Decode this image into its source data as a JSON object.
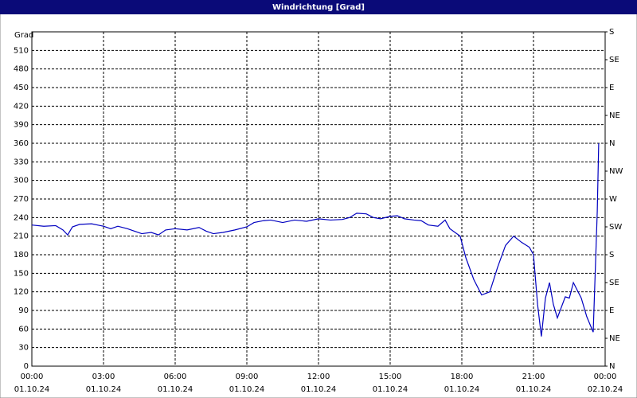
{
  "chart_data": {
    "type": "line",
    "title": "Windrichtung [Grad]",
    "y_label": "Grad",
    "x": [
      0,
      0.5,
      1.0,
      1.3,
      1.5,
      1.7,
      2.0,
      2.5,
      3.0,
      3.3,
      3.6,
      4.0,
      4.3,
      4.6,
      5.0,
      5.3,
      5.6,
      6.0,
      6.5,
      7.0,
      7.3,
      7.6,
      8.0,
      8.5,
      9.0,
      9.3,
      9.7,
      10.0,
      10.5,
      11.0,
      11.5,
      12.0,
      12.5,
      13.0,
      13.3,
      13.6,
      14.0,
      14.3,
      14.6,
      15.0,
      15.3,
      15.6,
      16.0,
      16.3,
      16.6,
      17.0,
      17.3,
      17.5,
      17.93,
      18.17,
      18.5,
      18.83,
      19.17,
      19.5,
      19.83,
      20.17,
      20.5,
      20.83,
      21.0,
      21.17,
      21.33,
      21.5,
      21.67,
      21.83,
      22.0,
      22.33,
      22.5,
      22.67,
      23.0,
      23.23,
      23.5,
      23.67,
      23.73
    ],
    "series": [
      {
        "name": "Windrichtung",
        "color": "#0000c0",
        "values": [
          228,
          226,
          227,
          220,
          212,
          225,
          229,
          230,
          226,
          222,
          226,
          222,
          218,
          214,
          216,
          212,
          220,
          222,
          220,
          224,
          218,
          214,
          216,
          220,
          225,
          232,
          235,
          236,
          232,
          236,
          234,
          238,
          236,
          237,
          240,
          247,
          246,
          240,
          238,
          242,
          243,
          238,
          236,
          235,
          228,
          226,
          236,
          222,
          210,
          175,
          140,
          115,
          120,
          160,
          195,
          210,
          200,
          192,
          180,
          100,
          48,
          110,
          135,
          100,
          78,
          112,
          110,
          135,
          110,
          80,
          55,
          250,
          360
        ]
      }
    ],
    "xlim": [
      0,
      24
    ],
    "xticks": [
      {
        "value": 0,
        "label": "00:00"
      },
      {
        "value": 3,
        "label": "03:00"
      },
      {
        "value": 6,
        "label": "06:00"
      },
      {
        "value": 9,
        "label": "09:00"
      },
      {
        "value": 12,
        "label": "12:00"
      },
      {
        "value": 15,
        "label": "15:00"
      },
      {
        "value": 18,
        "label": "18:00"
      },
      {
        "value": 21,
        "label": "21:00"
      },
      {
        "value": 24,
        "label": "00:00"
      }
    ],
    "xtick_dates": [
      "01.10.24",
      "01.10.24",
      "01.10.24",
      "01.10.24",
      "01.10.24",
      "01.10.24",
      "01.10.24",
      "01.10.24",
      "02.10.24"
    ],
    "ylim": [
      0,
      540
    ],
    "yticks": [
      0,
      30,
      60,
      90,
      120,
      150,
      180,
      210,
      240,
      270,
      300,
      330,
      360,
      390,
      420,
      450,
      480,
      510
    ],
    "y2lim": [
      0,
      540
    ],
    "y2ticks": [
      {
        "value": 0,
        "label": "N"
      },
      {
        "value": 45,
        "label": "NE"
      },
      {
        "value": 90,
        "label": "E"
      },
      {
        "value": 135,
        "label": "SE"
      },
      {
        "value": 180,
        "label": "S"
      },
      {
        "value": 225,
        "label": "SW"
      },
      {
        "value": 270,
        "label": "W"
      },
      {
        "value": 315,
        "label": "NW"
      },
      {
        "value": 360,
        "label": "N"
      },
      {
        "value": 405,
        "label": "NE"
      },
      {
        "value": 450,
        "label": "E"
      },
      {
        "value": 495,
        "label": "SE"
      },
      {
        "value": 540,
        "label": "S"
      }
    ],
    "grid": true
  }
}
